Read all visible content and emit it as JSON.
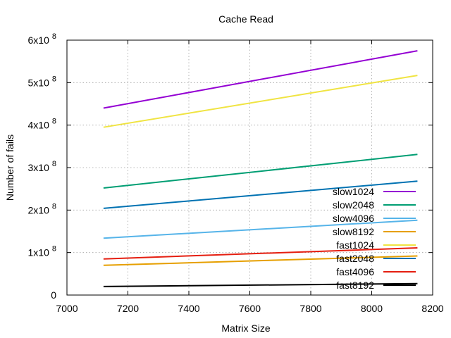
{
  "chart_data": {
    "type": "line",
    "title": "Cache Read",
    "xlabel": "Matrix Size",
    "ylabel": "Number of fails",
    "xlim": [
      7000,
      8200
    ],
    "ylim": [
      0,
      600000000
    ],
    "x_ticks": [
      7000,
      7200,
      7400,
      7600,
      7800,
      8000,
      8200
    ],
    "y_ticks": [
      {
        "value": 0,
        "base": "0",
        "exp": ""
      },
      {
        "value": 100000000,
        "base": "1x10",
        "exp": "8"
      },
      {
        "value": 200000000,
        "base": "2x10",
        "exp": "8"
      },
      {
        "value": 300000000,
        "base": "3x10",
        "exp": "8"
      },
      {
        "value": 400000000,
        "base": "4x10",
        "exp": "8"
      },
      {
        "value": 500000000,
        "base": "5x10",
        "exp": "8"
      },
      {
        "value": 600000000,
        "base": "6x10",
        "exp": "8"
      }
    ],
    "grid": true,
    "legend_position": "right",
    "series": [
      {
        "name": "slow1024",
        "color": "#9400d3",
        "x": [
          7120,
          8150
        ],
        "y": [
          440000000,
          575000000
        ]
      },
      {
        "name": "slow2048",
        "color": "#009e73",
        "x": [
          7120,
          8150
        ],
        "y": [
          252000000,
          331000000
        ]
      },
      {
        "name": "slow4096",
        "color": "#56b4e9",
        "x": [
          7120,
          8150
        ],
        "y": [
          134000000,
          176000000
        ]
      },
      {
        "name": "slow8192",
        "color": "#e69f00",
        "x": [
          7120,
          8150
        ],
        "y": [
          70000000,
          92000000
        ]
      },
      {
        "name": "fast1024",
        "color": "#f0e442",
        "x": [
          7120,
          8150
        ],
        "y": [
          395000000,
          517000000
        ]
      },
      {
        "name": "fast2048",
        "color": "#0072b2",
        "x": [
          7120,
          8150
        ],
        "y": [
          204000000,
          268000000
        ]
      },
      {
        "name": "fast4096",
        "color": "#e51e10",
        "x": [
          7120,
          8150
        ],
        "y": [
          85000000,
          111000000
        ]
      },
      {
        "name": "fast8192",
        "color": "#000000",
        "x": [
          7120,
          8150
        ],
        "y": [
          20000000,
          27000000
        ]
      }
    ]
  }
}
